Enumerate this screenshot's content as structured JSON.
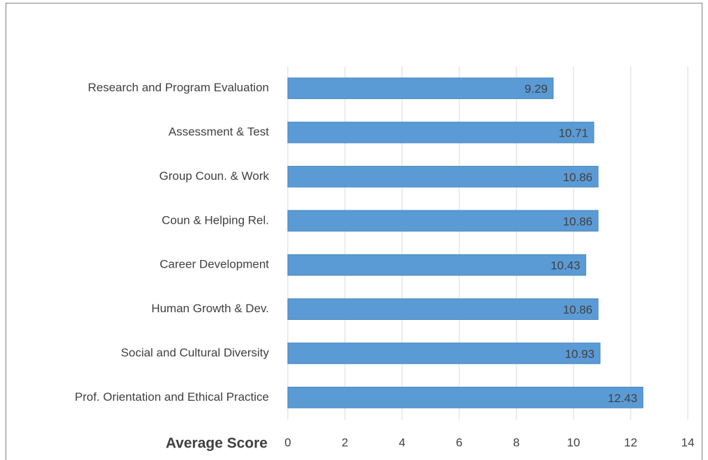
{
  "chart_data": {
    "type": "bar",
    "orientation": "horizontal",
    "x_label": "Average Score",
    "categories": [
      "Research and Program Evaluation",
      "Assessment & Test",
      "Group Coun. & Work",
      "Coun & Helping Rel.",
      "Career Development",
      "Human Growth & Dev.",
      "Social and Cultural Diversity",
      "Prof. Orientation and Ethical Practice"
    ],
    "values": [
      9.29,
      10.71,
      10.86,
      10.86,
      10.43,
      10.86,
      10.93,
      12.43
    ],
    "color": "#5b9bd5",
    "xlim": [
      0,
      14
    ],
    "xticks": [
      0,
      2,
      4,
      6,
      8,
      10,
      12,
      14
    ],
    "grid": true
  }
}
